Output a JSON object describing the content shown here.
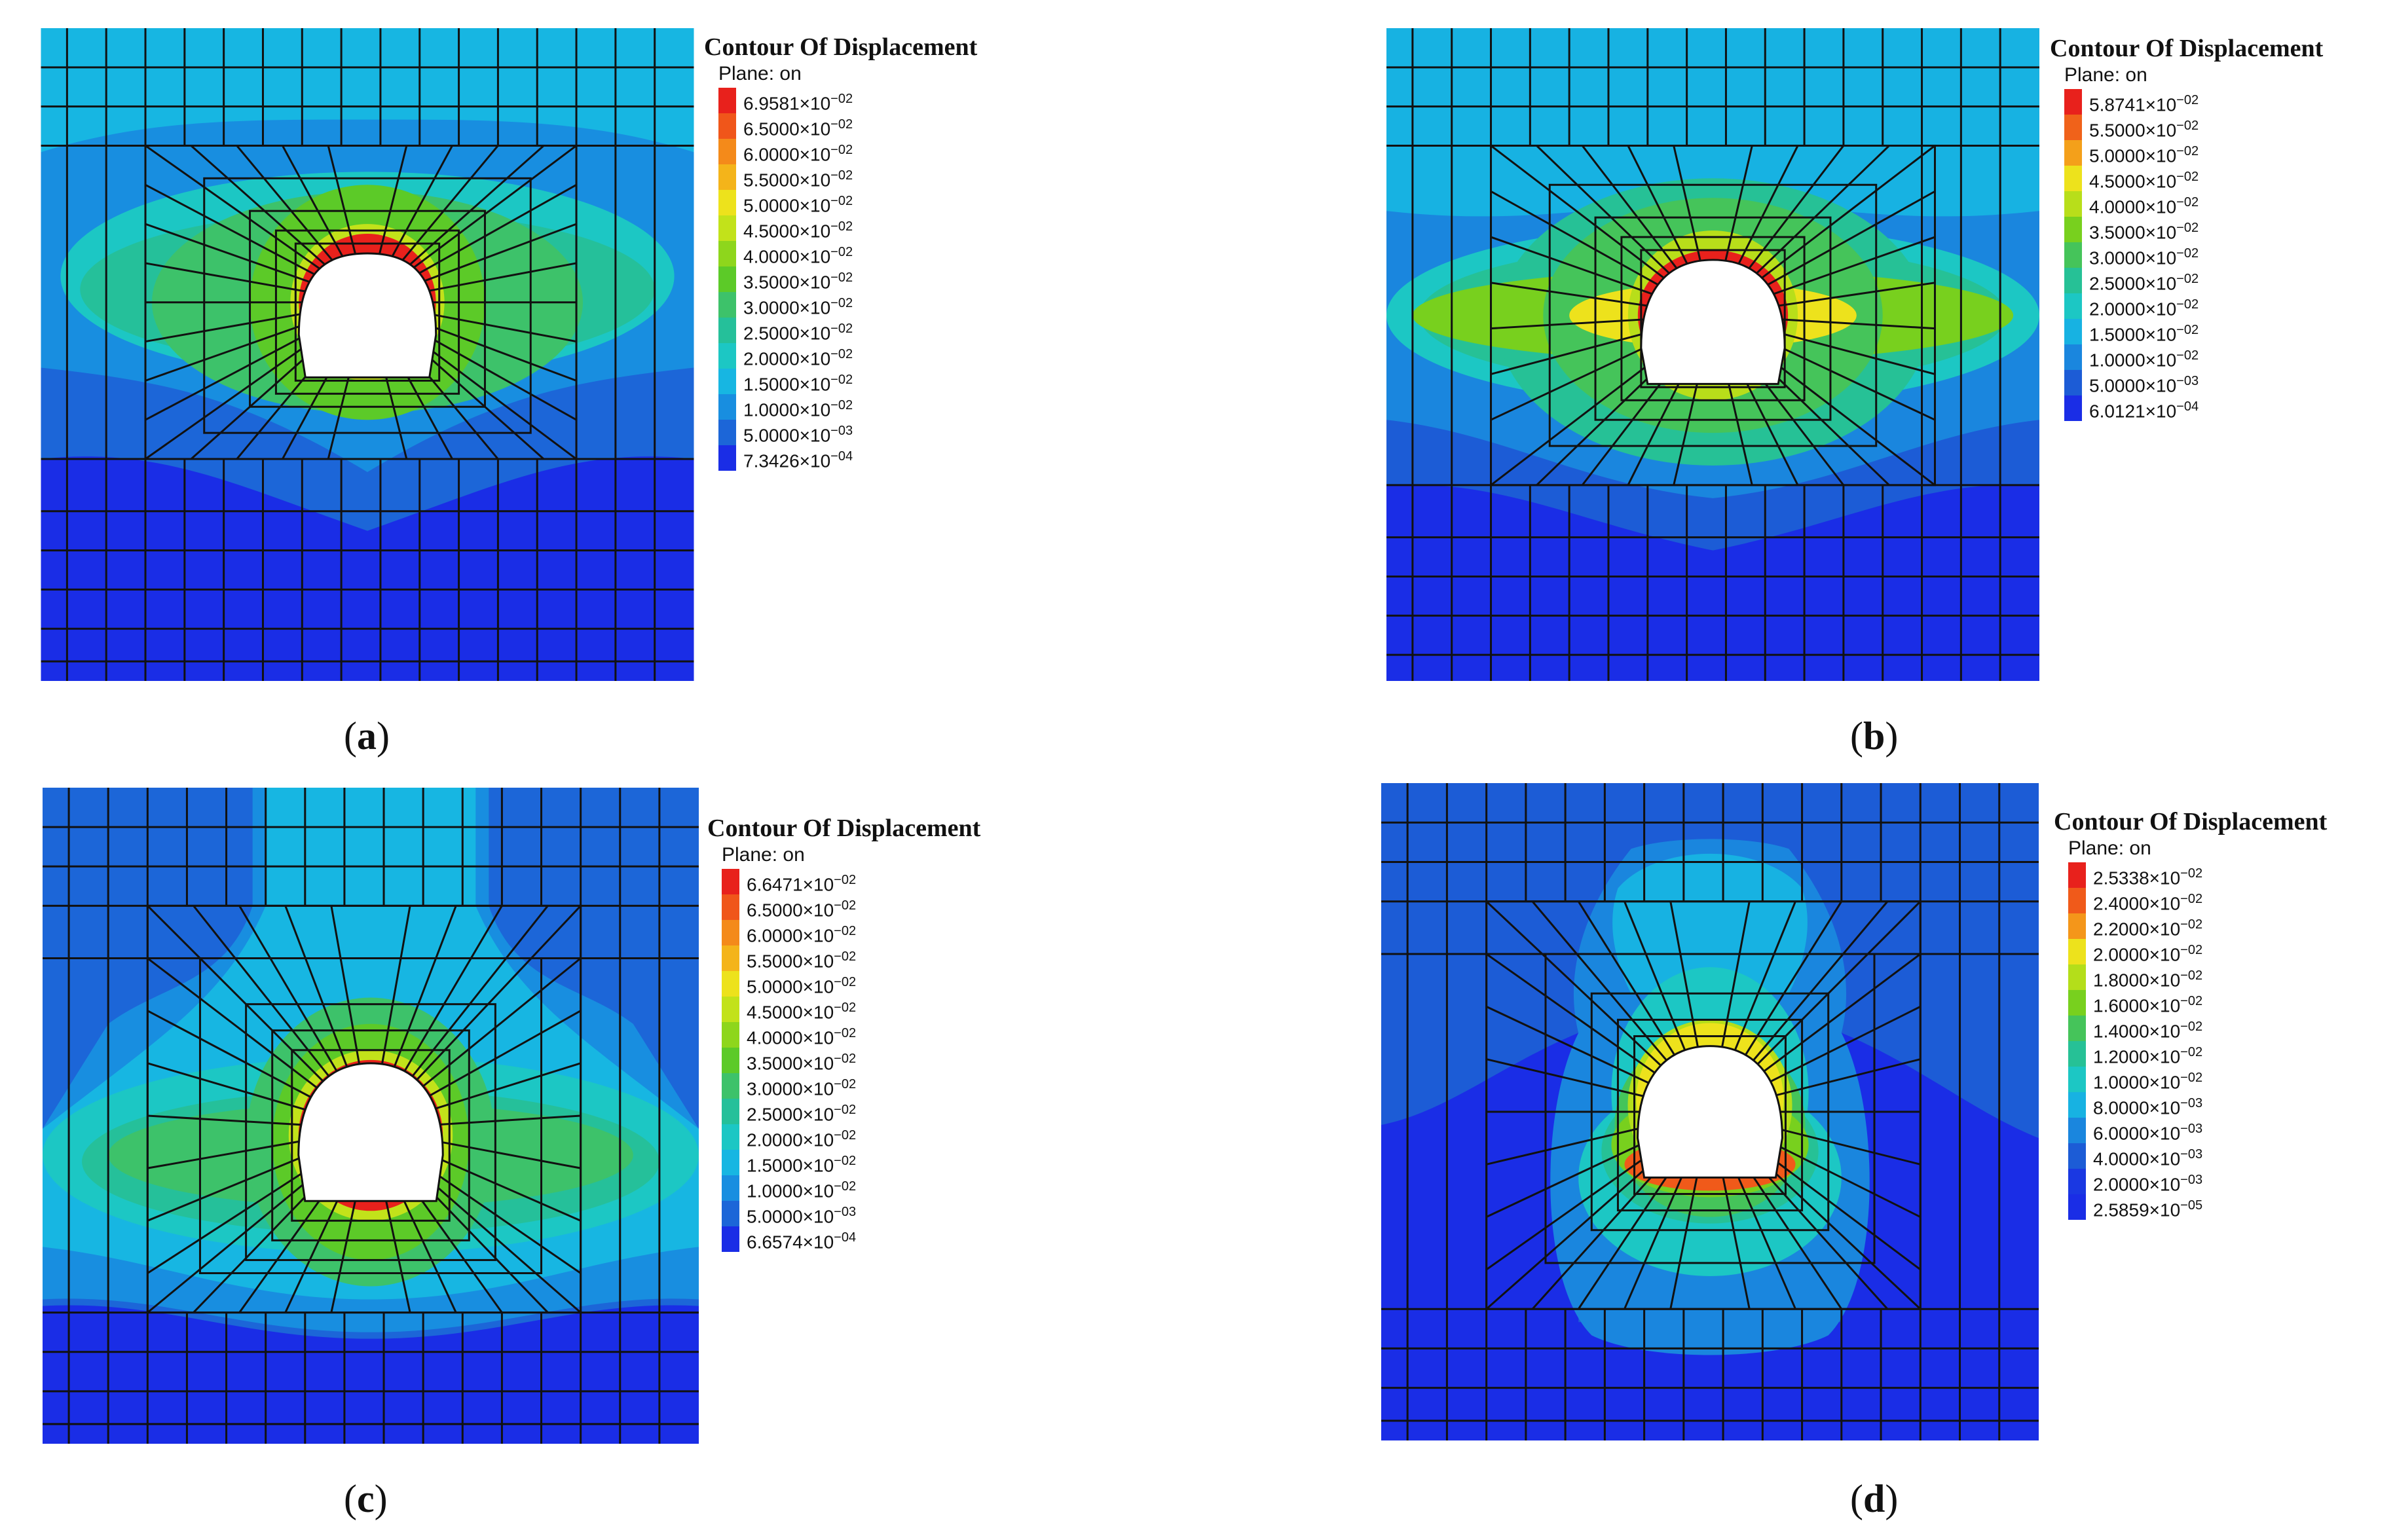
{
  "panels": [
    {
      "id": "a",
      "caption": {
        "open": "(",
        "letter": "a",
        "close": ")"
      },
      "legend": {
        "title": "Contour Of Displacement",
        "plane": "Plane: on",
        "labels": [
          "6.9581×10",
          "6.5000×10",
          "6.0000×10",
          "5.5000×10",
          "5.0000×10",
          "4.5000×10",
          "4.0000×10",
          "3.5000×10",
          "3.0000×10",
          "2.5000×10",
          "2.0000×10",
          "1.5000×10",
          "1.0000×10",
          "5.0000×10",
          "7.3426×10"
        ],
        "exponents": [
          "−02",
          "−02",
          "−02",
          "−02",
          "−02",
          "−02",
          "−02",
          "−02",
          "−02",
          "−02",
          "−02",
          "−02",
          "−02",
          "−03",
          "−04"
        ],
        "colors": [
          "#e8211c",
          "#f0561a",
          "#f48a1a",
          "#f4b41a",
          "#ede21c",
          "#c2e21a",
          "#8ed61c",
          "#5cca28",
          "#3dc26a",
          "#25c09a",
          "#1cc7c4",
          "#17b6e2",
          "#188ee0",
          "#1c66d8",
          "#1a2de6"
        ]
      }
    },
    {
      "id": "b",
      "caption": {
        "open": "(",
        "letter": "b",
        "close": ")"
      },
      "legend": {
        "title": "Contour Of Displacement",
        "plane": "Plane: on",
        "labels": [
          "5.8741×10",
          "5.5000×10",
          "5.0000×10",
          "4.5000×10",
          "4.0000×10",
          "3.5000×10",
          "3.0000×10",
          "2.5000×10",
          "2.0000×10",
          "1.5000×10",
          "1.0000×10",
          "5.0000×10",
          "6.0121×10"
        ],
        "exponents": [
          "−02",
          "−02",
          "−02",
          "−02",
          "−02",
          "−02",
          "−02",
          "−02",
          "−02",
          "−02",
          "−02",
          "−03",
          "−04"
        ],
        "colors": [
          "#e8211c",
          "#f0621a",
          "#f4a01a",
          "#ede21c",
          "#b8de1a",
          "#78d01e",
          "#45c45a",
          "#26c196",
          "#1cc7c4",
          "#17b2e2",
          "#1a86de",
          "#1c5cd6",
          "#1a2de6"
        ]
      }
    },
    {
      "id": "c",
      "caption": {
        "open": "(",
        "letter": "c",
        "close": ")"
      },
      "legend": {
        "title": "Contour Of Displacement",
        "plane": "Plane: on",
        "labels": [
          "6.6471×10",
          "6.5000×10",
          "6.0000×10",
          "5.5000×10",
          "5.0000×10",
          "4.5000×10",
          "4.0000×10",
          "3.5000×10",
          "3.0000×10",
          "2.5000×10",
          "2.0000×10",
          "1.5000×10",
          "1.0000×10",
          "5.0000×10",
          "6.6574×10"
        ],
        "exponents": [
          "−02",
          "−02",
          "−02",
          "−02",
          "−02",
          "−02",
          "−02",
          "−02",
          "−02",
          "−02",
          "−02",
          "−02",
          "−02",
          "−03",
          "−04"
        ],
        "colors": [
          "#e8211c",
          "#f0561a",
          "#f48a1a",
          "#f4b41a",
          "#ede21c",
          "#c2e21a",
          "#8ed61c",
          "#5cca28",
          "#3dc26a",
          "#25c09a",
          "#1cc7c4",
          "#17b6e2",
          "#188ee0",
          "#1c66d8",
          "#1a2de6"
        ]
      }
    },
    {
      "id": "d",
      "caption": {
        "open": "(",
        "letter": "d",
        "close": ")"
      },
      "legend": {
        "title": "Contour Of Displacement",
        "plane": "Plane: on",
        "labels": [
          "2.5338×10",
          "2.4000×10",
          "2.2000×10",
          "2.0000×10",
          "1.8000×10",
          "1.6000×10",
          "1.4000×10",
          "1.2000×10",
          "1.0000×10",
          "8.0000×10",
          "6.0000×10",
          "4.0000×10",
          "2.0000×10",
          "2.5859×10"
        ],
        "exponents": [
          "−02",
          "−02",
          "−02",
          "−02",
          "−02",
          "−02",
          "−02",
          "−02",
          "−02",
          "−03",
          "−03",
          "−03",
          "−03",
          "−05"
        ],
        "colors": [
          "#e8211c",
          "#f05a1a",
          "#f4961a",
          "#ede21c",
          "#b4de1a",
          "#78d01e",
          "#45c45a",
          "#26c196",
          "#1cc7c4",
          "#17b2e2",
          "#1a86de",
          "#1c5cd6",
          "#1a38e2",
          "#1a2de6"
        ]
      }
    }
  ]
}
